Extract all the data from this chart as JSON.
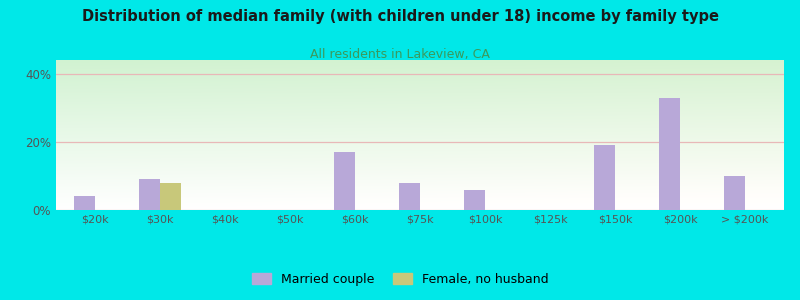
{
  "categories": [
    "$20k",
    "$30k",
    "$40k",
    "$50k",
    "$60k",
    "$75k",
    "$100k",
    "$125k",
    "$150k",
    "$200k",
    "> $200k"
  ],
  "married_couple": [
    4.0,
    9.0,
    0.0,
    0.0,
    17.0,
    8.0,
    6.0,
    0.0,
    19.0,
    33.0,
    10.0
  ],
  "female_no_husband": [
    0.0,
    8.0,
    0.0,
    0.0,
    0.0,
    0.0,
    0.0,
    0.0,
    0.0,
    0.0,
    0.0
  ],
  "married_color": "#b8a8d8",
  "female_color": "#c8c87a",
  "title": "Distribution of median family (with children under 18) income by family type",
  "subtitle": "All residents in Lakeview, CA",
  "subtitle_color": "#3a9a5c",
  "title_color": "#1a1a1a",
  "ylim": [
    0,
    44
  ],
  "yticks": [
    0,
    20,
    40
  ],
  "ytick_labels": [
    "0%",
    "20%",
    "40%"
  ],
  "outer_bg": "#00e8e8",
  "grid_color": "#e8b8b8",
  "bar_width": 0.32,
  "legend_married": "Married couple",
  "legend_female": "Female, no husband"
}
